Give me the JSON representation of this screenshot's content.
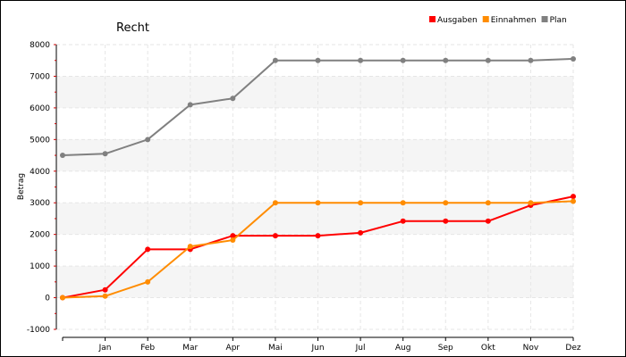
{
  "chart_data": {
    "type": "line",
    "title": "Recht",
    "xlabel": "",
    "ylabel": "Betrag",
    "categories": [
      "",
      "Jan",
      "Feb",
      "Mar",
      "Apr",
      "Mai",
      "Jun",
      "Jul",
      "Aug",
      "Sep",
      "Okt",
      "Nov",
      "Dez"
    ],
    "ylim": [
      -1000,
      8000
    ],
    "yticks": [
      -1000,
      0,
      1000,
      2000,
      3000,
      4000,
      5000,
      6000,
      7000,
      8000
    ],
    "grid": true,
    "legend_position": "top-right",
    "series": [
      {
        "name": "Ausgaben",
        "color": "#ff0000",
        "values": [
          0,
          250,
          1530,
          1530,
          1960,
          1960,
          1960,
          2050,
          2420,
          2420,
          2420,
          2920,
          3200
        ]
      },
      {
        "name": "Einnahmen",
        "color": "#ff8c00",
        "values": [
          0,
          50,
          500,
          1620,
          1820,
          3000,
          3000,
          3000,
          3000,
          3000,
          3000,
          3000,
          3050
        ]
      },
      {
        "name": "Plan",
        "color": "#808080",
        "values": [
          4500,
          4550,
          5000,
          6100,
          6300,
          7500,
          7500,
          7500,
          7500,
          7500,
          7500,
          7500,
          7550
        ]
      }
    ]
  }
}
